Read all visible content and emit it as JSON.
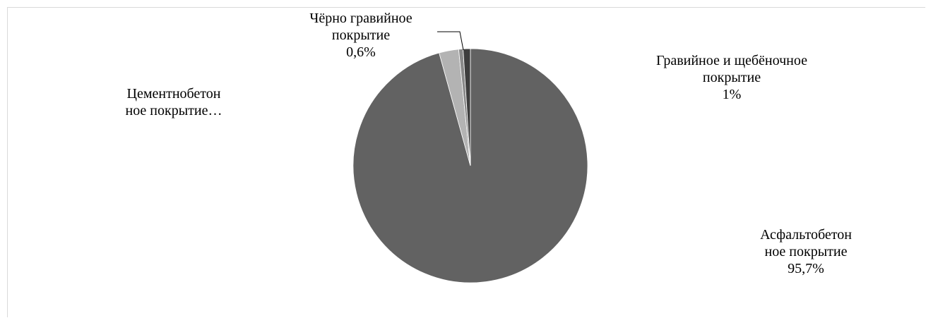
{
  "chart_data": {
    "type": "pie",
    "title": "",
    "slices": [
      {
        "label_lines": [
          "Асфальтобетон",
          "ное покрытие"
        ],
        "value_text": "95,7%",
        "value": 95.7,
        "color": "#626262"
      },
      {
        "label_lines": [
          "Цементнобетон",
          "ное покрытие…"
        ],
        "value_text": "",
        "value": 2.7,
        "color": "#b3b3b3"
      },
      {
        "label_lines": [
          "Чёрно гравийное",
          "покрытие"
        ],
        "value_text": "0,6%",
        "value": 0.6,
        "color": "#8a8a8a"
      },
      {
        "label_lines": [
          "Гравийное и щебёночное",
          "покрытие"
        ],
        "value_text": "1%",
        "value": 1.0,
        "color": "#3e3e3e"
      }
    ],
    "start_angle_deg": 0,
    "direction": "clockwise",
    "legend": "none"
  }
}
